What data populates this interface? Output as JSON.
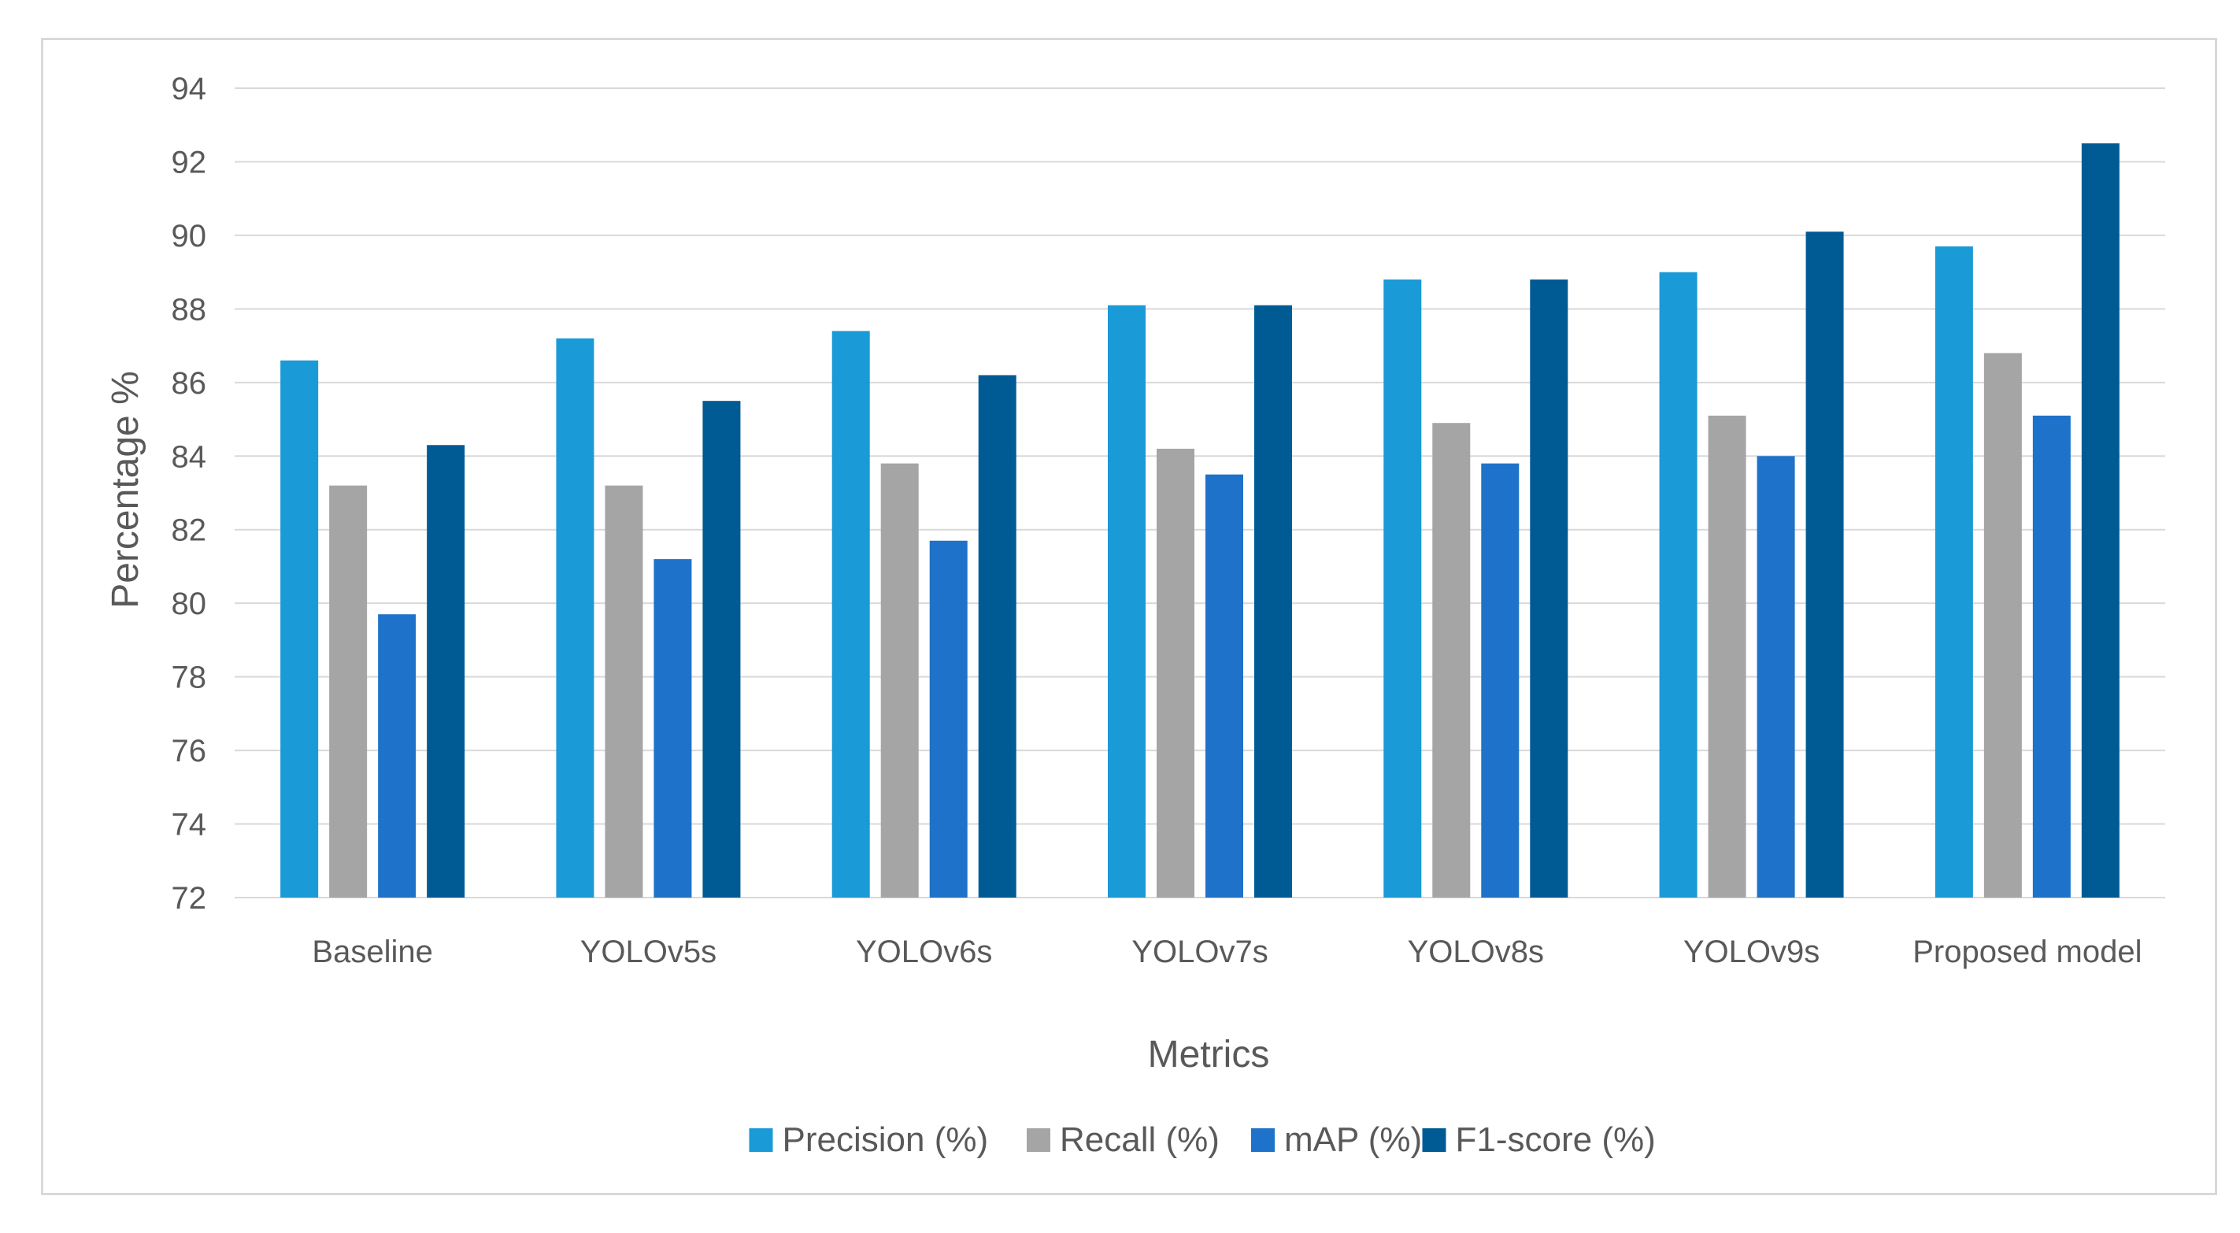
{
  "chart_data": {
    "type": "bar",
    "title": "",
    "xlabel": "Metrics",
    "ylabel": "Percentage %",
    "ylim": [
      72,
      94
    ],
    "ytick_step": 2,
    "grid": true,
    "legend_position": "bottom",
    "categories": [
      "Baseline",
      "YOLOv5s",
      "YOLOv6s",
      "YOLOv7s",
      "YOLOv8s",
      "YOLOv9s",
      "Proposed model"
    ],
    "series": [
      {
        "name": "Precision (%)",
        "color": "#1a9ad6",
        "values": [
          86.6,
          87.2,
          87.4,
          88.1,
          88.8,
          89.0,
          89.7
        ]
      },
      {
        "name": "Recall (%)",
        "color": "#a5a5a5",
        "values": [
          83.2,
          83.2,
          83.8,
          84.2,
          84.9,
          85.1,
          86.8
        ]
      },
      {
        "name": "mAP (%)",
        "color": "#1f72c9",
        "values": [
          79.7,
          81.2,
          81.7,
          83.5,
          83.8,
          84.0,
          85.1
        ]
      },
      {
        "name": "F1-score (%)",
        "color": "#005b94",
        "values": [
          84.3,
          85.5,
          86.2,
          88.1,
          88.8,
          90.1,
          92.5
        ]
      }
    ]
  }
}
